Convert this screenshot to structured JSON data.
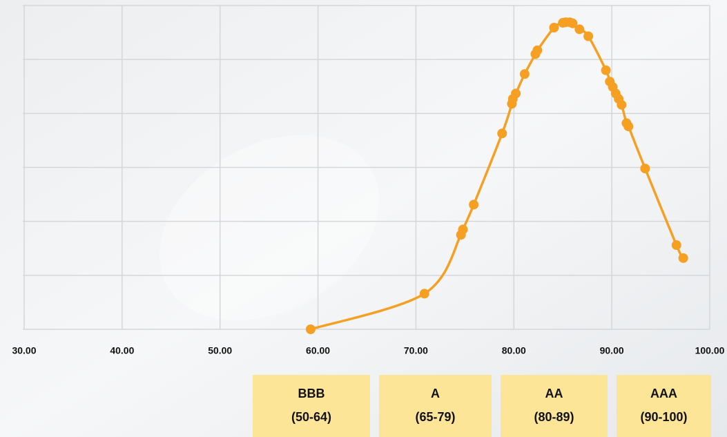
{
  "chart_data": {
    "type": "line",
    "x": [
      59.25,
      70.87,
      74.6,
      74.8,
      75.9,
      78.8,
      79.8,
      79.9,
      80.2,
      81.1,
      82.2,
      82.4,
      84.1,
      85.0,
      85.3,
      85.7,
      86.0,
      86.7,
      87.6,
      89.4,
      89.8,
      90.1,
      90.4,
      90.7,
      91.0,
      91.5,
      91.7,
      93.4,
      96.6,
      97.3
    ],
    "series": [
      {
        "color": "#f5a023",
        "values": [
          0,
          0.66,
          1.75,
          1.85,
          2.31,
          3.63,
          4.18,
          4.27,
          4.37,
          4.73,
          5.1,
          5.17,
          5.59,
          5.68,
          5.69,
          5.69,
          5.67,
          5.56,
          5.43,
          4.8,
          4.59,
          4.49,
          4.37,
          4.27,
          4.16,
          3.82,
          3.76,
          2.98,
          1.56,
          1.32
        ]
      }
    ],
    "xlim": [
      30,
      100
    ],
    "xticks": [
      {
        "value": 30,
        "label": "30.00"
      },
      {
        "value": 40,
        "label": "40.00"
      },
      {
        "value": 50,
        "label": "50.00"
      },
      {
        "value": 60,
        "label": "60.00"
      },
      {
        "value": 70,
        "label": "70.00"
      },
      {
        "value": 80,
        "label": "80.00"
      },
      {
        "value": 90,
        "label": "90.00"
      },
      {
        "value": 100,
        "label": "100.00"
      }
    ],
    "ylim": [
      0,
      6
    ],
    "yticks": [
      0,
      1,
      2,
      3,
      4,
      5,
      6
    ],
    "grid": true,
    "bands": [
      {
        "grade": "BBB",
        "range": "(50-64)"
      },
      {
        "grade": "A",
        "range": "(65-79)"
      },
      {
        "grade": "AA",
        "range": "(80-89)"
      },
      {
        "grade": "AAA",
        "range": "(90-100)"
      }
    ],
    "band_color": "#fde598"
  }
}
